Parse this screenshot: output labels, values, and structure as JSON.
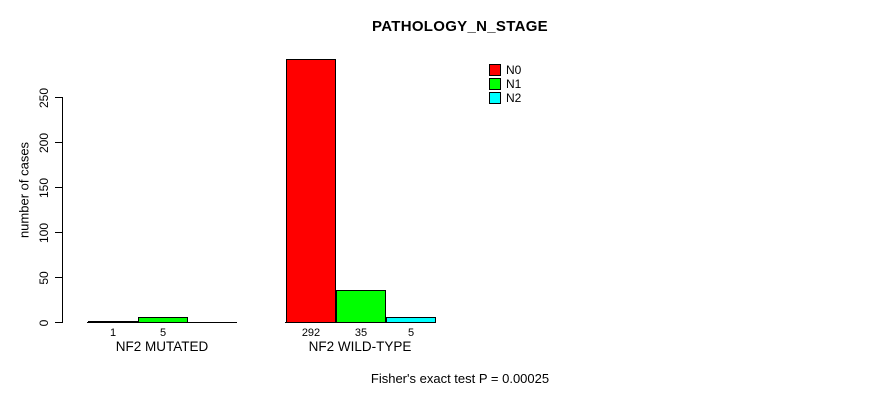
{
  "title": "PATHOLOGY_N_STAGE",
  "footer": "Fisher's exact test P = 0.00025",
  "chart_data": {
    "type": "bar",
    "title": "PATHOLOGY_N_STAGE",
    "xlabel": "",
    "ylabel": "number of cases",
    "ylim": [
      0,
      250
    ],
    "yticks": [
      0,
      50,
      100,
      150,
      200,
      250
    ],
    "grid": false,
    "legend_position": "upper-right",
    "series": [
      {
        "name": "N0",
        "color": "#ff0000"
      },
      {
        "name": "N1",
        "color": "#00ff00"
      },
      {
        "name": "N2",
        "color": "#00ffff"
      }
    ],
    "groups": [
      {
        "label": "NF2 MUTATED",
        "values": [
          1,
          5,
          0
        ],
        "bar_labels": [
          "1",
          "5",
          ""
        ]
      },
      {
        "label": "NF2 WILD-TYPE",
        "values": [
          292,
          35,
          5
        ],
        "bar_labels": [
          "292",
          "35",
          "5"
        ]
      }
    ],
    "annotation": "Fisher's exact test P = 0.00025"
  }
}
